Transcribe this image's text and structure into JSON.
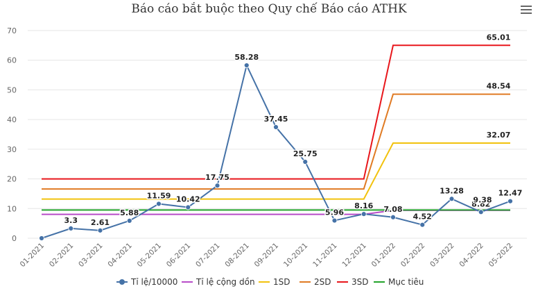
{
  "title": "Báo cáo bắt buộc theo Quy chế Báo cáo ATHK",
  "menu_icon": "hamburger-menu-icon",
  "chart_data": {
    "type": "line",
    "title": "Báo cáo bắt buộc theo Quy chế Báo cáo ATHK",
    "xlabel": "",
    "ylabel": "",
    "ylim": [
      0,
      70
    ],
    "yticks": [
      0,
      10,
      20,
      30,
      40,
      50,
      60,
      70
    ],
    "grid": true,
    "legend_position": "bottom",
    "categories": [
      "01-2021",
      "02-2021",
      "03-2021",
      "04-2021",
      "05-2021",
      "06-2021",
      "07-2021",
      "08-2021",
      "09-2021",
      "10-2021",
      "11-2021",
      "12-2021",
      "01-2022",
      "02-2022",
      "03-2022",
      "04-2022",
      "05-2022"
    ],
    "series": [
      {
        "name": "Tỉ lệ/10000",
        "color": "#4572a7",
        "markers": true,
        "labels": true,
        "values": [
          0,
          3.3,
          2.61,
          5.88,
          11.59,
          10.42,
          17.75,
          58.28,
          37.45,
          25.75,
          5.96,
          8.16,
          7.08,
          4.52,
          13.28,
          8.82,
          12.47
        ],
        "label_texts": [
          "",
          "3.3",
          "2.61",
          "5.88",
          "11.59",
          "10.42",
          "17.75",
          "58.28",
          "37.45",
          "25.75",
          "5.96",
          "8.16",
          "7.08",
          "4.52",
          "13.28",
          "8.82",
          "12.47"
        ]
      },
      {
        "name": "Tỉ lệ cộng dồn",
        "color": "#b84cc8",
        "values": [
          8.05,
          8.05,
          8.05,
          8.05,
          8.05,
          8.05,
          8.05,
          8.05,
          8.05,
          8.05,
          8.05,
          8.05,
          9.38,
          9.38,
          9.38,
          9.38,
          9.38
        ],
        "end_label": "9.38"
      },
      {
        "name": "1SD",
        "color": "#f2c20d",
        "values": [
          13.2,
          13.2,
          13.2,
          13.2,
          13.2,
          13.2,
          13.2,
          13.2,
          13.2,
          13.2,
          13.2,
          13.2,
          32.07,
          32.07,
          32.07,
          32.07,
          32.07
        ],
        "end_label": "32.07"
      },
      {
        "name": "2SD",
        "color": "#e07b24",
        "values": [
          16.6,
          16.6,
          16.6,
          16.6,
          16.6,
          16.6,
          16.6,
          16.6,
          16.6,
          16.6,
          16.6,
          16.6,
          48.54,
          48.54,
          48.54,
          48.54,
          48.54
        ],
        "end_label": "48.54"
      },
      {
        "name": "3SD",
        "color": "#e8161b",
        "values": [
          20,
          20,
          20,
          20,
          20,
          20,
          20,
          20,
          20,
          20,
          20,
          20,
          65.01,
          65.01,
          65.01,
          65.01,
          65.01
        ],
        "end_label": "65.01"
      },
      {
        "name": "Mục tiêu",
        "color": "#22a32a",
        "values": [
          9.5,
          9.5,
          9.5,
          9.5,
          9.5,
          9.5,
          9.5,
          9.5,
          9.5,
          9.5,
          9.5,
          9.5,
          9.5,
          9.5,
          9.5,
          9.5,
          9.5
        ]
      }
    ]
  }
}
